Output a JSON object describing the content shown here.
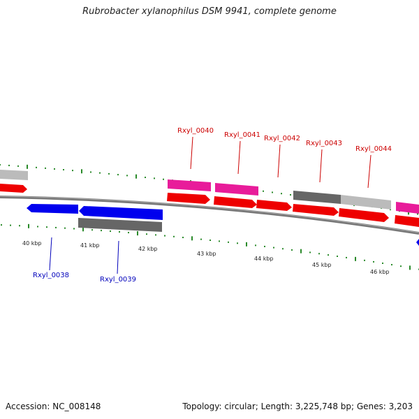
{
  "title": "Rubrobacter xylanophilus DSM 9941, complete genome",
  "footer": {
    "accession": "Accession: NC_008148",
    "summary": "Topology: circular; Length: 3,225,748 bp; Genes: 3,203"
  },
  "colors": {
    "top_strand_label": "#cc0000",
    "bottom_strand_label": "#0000bb",
    "tick": "#2a8a2a",
    "backbone": "#777777",
    "cds_red": "#ee0000",
    "cds_blue": "#0000ee",
    "cds_magenta": "#e81c9a",
    "cds_dark_gray": "#666666",
    "cds_light_gray": "#bbbbbb"
  },
  "scale_labels": [
    "40 kbp",
    "41 kbp",
    "42 kbp",
    "43 kbp",
    "44 kbp",
    "45 kbp",
    "46 kbp"
  ],
  "gene_labels": {
    "top": [
      "Rxyl_0040",
      "Rxyl_0041",
      "Rxyl_0042",
      "Rxyl_0043",
      "Rxyl_0044"
    ],
    "bottom": [
      "Rxyl_0038",
      "Rxyl_0039"
    ]
  }
}
